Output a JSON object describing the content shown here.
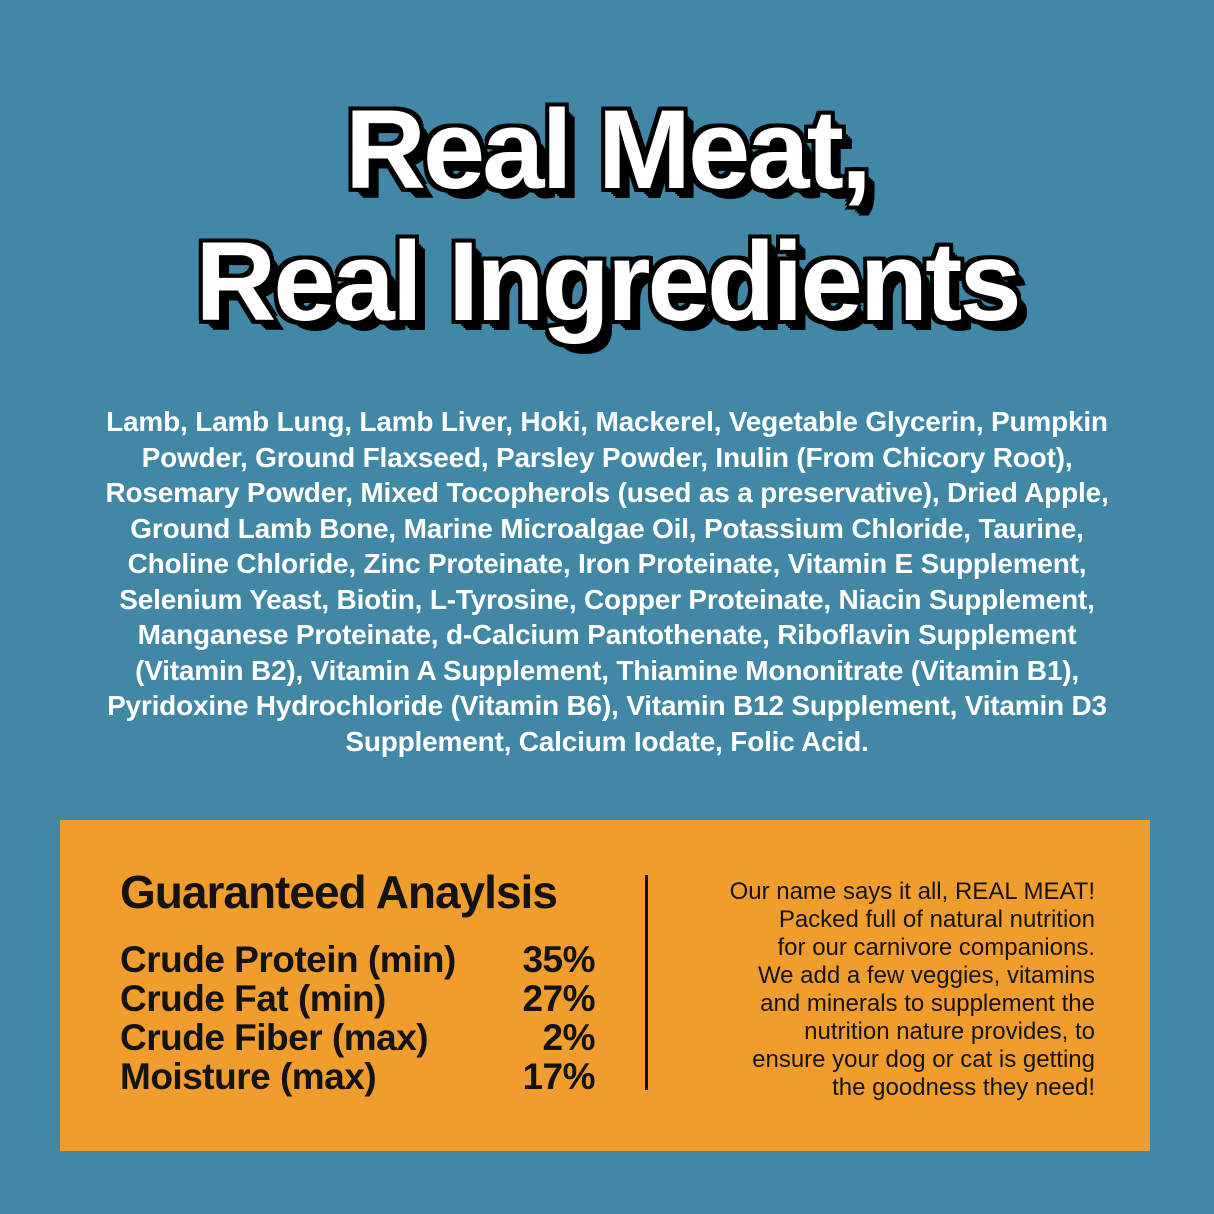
{
  "title": {
    "line1": "Real Meat,",
    "line2": "Real Ingredients"
  },
  "ingredients": {
    "lines": [
      "Lamb, Lamb Lung, Lamb Liver, Hoki, Mackerel, Vegetable Glycerin, Pumpkin",
      "Powder, Ground Flaxseed, Parsley Powder, Inulin (From Chicory Root),",
      "Rosemary Powder, Mixed Tocopherols (used as a preservative), Dried Apple,",
      "Ground Lamb Bone, Marine Microalgae Oil, Potassium Chloride, Taurine,",
      "Choline Chloride, Zinc Proteinate, Iron Proteinate, Vitamin E Supplement,",
      "Selenium Yeast, Biotin, L-Tyrosine, Copper Proteinate, Niacin Supplement,",
      "Manganese Proteinate, d-Calcium Pantothenate, Riboflavin Supplement",
      "(Vitamin B2), Vitamin A Supplement, Thiamine Mononitrate (Vitamin B1),",
      "Pyridoxine Hydrochloride (Vitamin B6), Vitamin B12 Supplement, Vitamin D3",
      "Supplement, Calcium Iodate, Folic Acid."
    ]
  },
  "panel": {
    "analysis": {
      "heading": "Guaranteed Anaylsis",
      "rows": [
        {
          "label": "Crude Protein (min)",
          "value": "35%"
        },
        {
          "label": "Crude Fat (min)",
          "value": "27%"
        },
        {
          "label": "Crude Fiber (max)",
          "value": "2%"
        },
        {
          "label": "Moisture (max)",
          "value": "17%"
        }
      ]
    },
    "about": {
      "lines": [
        "Our name says it all, REAL MEAT!",
        "Packed full of natural nutrition",
        "for our carnivore companions.",
        "We add a few veggies, vitamins",
        "and minerals to supplement the",
        "nutrition nature provides, to",
        "ensure your dog or cat is getting",
        "the goodness they need!"
      ]
    }
  },
  "colors": {
    "background": "#4187a6",
    "panel": "#f09d2e",
    "title_fill": "#ffffff",
    "title_outline": "#000000",
    "text_dark": "#131313",
    "text_light": "#ffffff"
  }
}
